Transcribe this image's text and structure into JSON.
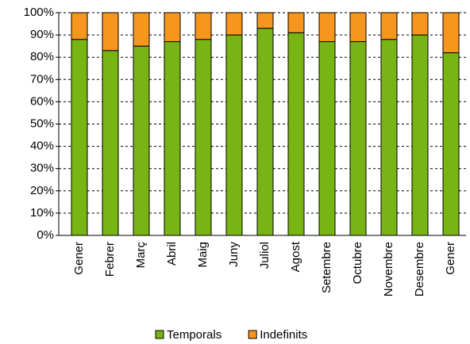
{
  "chart_data": {
    "type": "stacked_bar",
    "categories": [
      "Gener",
      "Febrer",
      "Març",
      "Abril",
      "Maig",
      "Juny",
      "Juliol",
      "Agost",
      "Setembre",
      "Octubre",
      "Novembre",
      "Desembre",
      "Gener"
    ],
    "series": [
      {
        "name": "Temporals",
        "color": "#78b414",
        "values": [
          88,
          83,
          85,
          87,
          88,
          90,
          93,
          91,
          87,
          87,
          88,
          90,
          82
        ]
      },
      {
        "name": "Indefinits",
        "color": "#f7961e",
        "values": [
          12,
          17,
          15,
          13,
          12,
          10,
          7,
          9,
          13,
          13,
          12,
          10,
          18
        ]
      }
    ],
    "ylim": [
      0,
      100
    ],
    "yticks": [
      {
        "value": 0,
        "label": "0%"
      },
      {
        "value": 10,
        "label": "10%"
      },
      {
        "value": 20,
        "label": "20%"
      },
      {
        "value": 30,
        "label": "30%"
      },
      {
        "value": 40,
        "label": "40%"
      },
      {
        "value": 50,
        "label": "50%"
      },
      {
        "value": 60,
        "label": "60%"
      },
      {
        "value": 70,
        "label": "70%"
      },
      {
        "value": 80,
        "label": "80%"
      },
      {
        "value": 90,
        "label": "90%"
      },
      {
        "value": 100,
        "label": "100%"
      }
    ],
    "grid": true
  }
}
